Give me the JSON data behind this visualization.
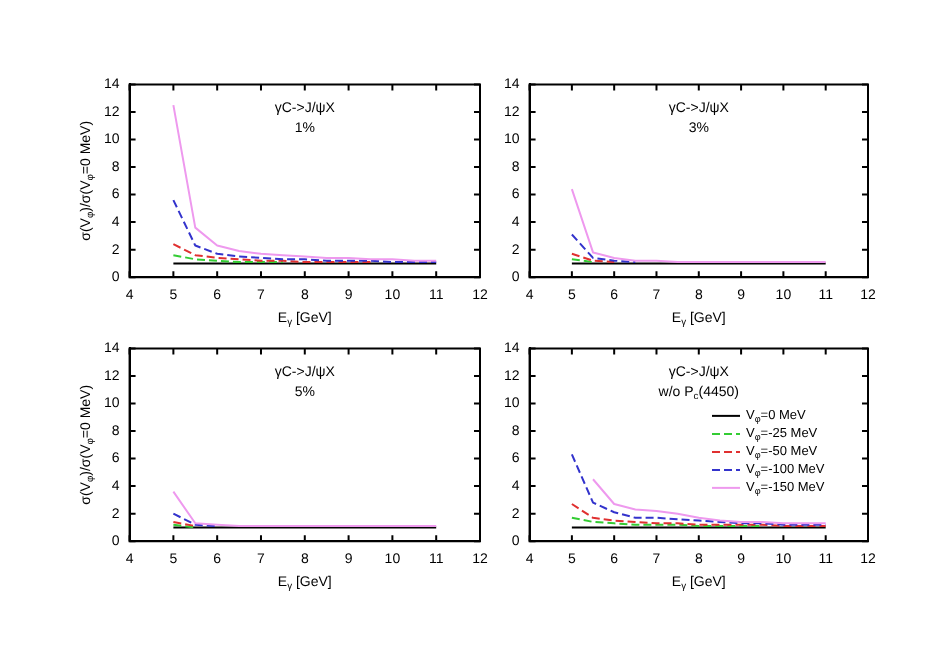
{
  "chart_data": [
    {
      "type": "line",
      "title": "γC->J/ψX",
      "subtitle": "1%",
      "xlabel": "E$_{γ}$ [GeV]",
      "ylabel": "σ(V$_{φ}$)/σ(V$_{φ}$=0 MeV)",
      "x": [
        5,
        5.5,
        6,
        6.5,
        7,
        7.5,
        8,
        8.5,
        9,
        9.5,
        10,
        10.5,
        11
      ],
      "xlim": [
        4,
        12
      ],
      "xticks": [
        4,
        5,
        6,
        7,
        8,
        9,
        10,
        11,
        12
      ],
      "ylim": [
        0,
        14
      ],
      "yticks": [
        0,
        2,
        4,
        6,
        8,
        10,
        12,
        14
      ],
      "legend": false,
      "series": [
        {
          "color": "#000000",
          "line_style": "solid",
          "values": [
            1,
            1,
            1,
            1,
            1,
            1,
            1,
            1,
            1,
            1,
            1,
            1,
            1
          ]
        },
        {
          "color": "#33cc33",
          "line_style": "dashed",
          "values": [
            1.6,
            1.3,
            1.2,
            1.1,
            1.1,
            1.1,
            null,
            null,
            null,
            null,
            null,
            null,
            null
          ]
        },
        {
          "color": "#e03030",
          "line_style": "dashed",
          "values": [
            2.4,
            1.6,
            1.4,
            1.3,
            1.2,
            1.2,
            1.1,
            1.1,
            1.1,
            1.1,
            null,
            null,
            null
          ]
        },
        {
          "color": "#3333cc",
          "line_style": "dashed",
          "values": [
            5.6,
            2.3,
            1.7,
            1.5,
            1.4,
            1.3,
            1.3,
            1.2,
            1.2,
            1.2,
            1.1,
            1.1,
            1.1
          ]
        },
        {
          "color": "#ee99ee",
          "line_style": "solid",
          "values": [
            12.5,
            3.6,
            2.3,
            1.9,
            1.7,
            1.6,
            1.5,
            1.4,
            1.4,
            1.3,
            1.3,
            1.2,
            1.2
          ]
        }
      ]
    },
    {
      "type": "line",
      "title": "γC->J/ψX",
      "subtitle": "3%",
      "xlabel": "E$_{γ}$ [GeV]",
      "x": [
        5,
        5.5,
        6,
        6.5,
        7,
        7.5,
        8,
        8.5,
        9,
        9.5,
        10,
        10.5,
        11
      ],
      "xlim": [
        4,
        12
      ],
      "xticks": [
        4,
        5,
        6,
        7,
        8,
        9,
        10,
        11,
        12
      ],
      "ylim": [
        0,
        14
      ],
      "yticks": [
        0,
        2,
        4,
        6,
        8,
        10,
        12,
        14
      ],
      "legend": false,
      "series": [
        {
          "color": "#000000",
          "line_style": "solid",
          "values": [
            1,
            1,
            1,
            1,
            1,
            1,
            1,
            1,
            1,
            1,
            1,
            1,
            1
          ]
        },
        {
          "color": "#33cc33",
          "line_style": "dashed",
          "values": [
            1.3,
            1.1,
            null,
            null,
            null,
            null,
            null,
            null,
            null,
            null,
            null,
            null,
            null
          ]
        },
        {
          "color": "#e03030",
          "line_style": "dashed",
          "values": [
            1.7,
            1.2,
            1.1,
            null,
            null,
            null,
            null,
            null,
            null,
            null,
            null,
            null,
            null
          ]
        },
        {
          "color": "#3333cc",
          "line_style": "dashed",
          "values": [
            3.1,
            1.4,
            1.2,
            1.1,
            null,
            null,
            null,
            null,
            null,
            null,
            null,
            null,
            null
          ]
        },
        {
          "color": "#ee99ee",
          "line_style": "solid",
          "values": [
            6.4,
            1.8,
            1.4,
            1.2,
            1.2,
            1.1,
            1.1,
            1.1,
            1.1,
            1.1,
            1.1,
            1.1,
            1.1
          ]
        }
      ]
    },
    {
      "type": "line",
      "title": "γC->J/ψX",
      "subtitle": "5%",
      "xlabel": "E$_{γ}$ [GeV]",
      "ylabel": "σ(V$_{φ}$)/σ(V$_{φ}$=0 MeV)",
      "x": [
        5,
        5.5,
        6,
        6.5,
        7,
        7.5,
        8,
        8.5,
        9,
        9.5,
        10,
        10.5,
        11
      ],
      "xlim": [
        4,
        12
      ],
      "xticks": [
        4,
        5,
        6,
        7,
        8,
        9,
        10,
        11,
        12
      ],
      "ylim": [
        0,
        14
      ],
      "yticks": [
        0,
        2,
        4,
        6,
        8,
        10,
        12,
        14
      ],
      "legend": false,
      "series": [
        {
          "color": "#000000",
          "line_style": "solid",
          "values": [
            1,
            1,
            1,
            1,
            1,
            1,
            1,
            1,
            1,
            1,
            1,
            1,
            1
          ]
        },
        {
          "color": "#33cc33",
          "line_style": "dashed",
          "values": [
            1.2,
            1,
            null,
            null,
            null,
            null,
            null,
            null,
            null,
            null,
            null,
            null,
            null
          ]
        },
        {
          "color": "#e03030",
          "line_style": "dashed",
          "values": [
            1.4,
            1.1,
            null,
            null,
            null,
            null,
            null,
            null,
            null,
            null,
            null,
            null,
            null
          ]
        },
        {
          "color": "#3333cc",
          "line_style": "dashed",
          "values": [
            2,
            1.2,
            1.1,
            null,
            null,
            null,
            null,
            null,
            null,
            null,
            null,
            null,
            null
          ]
        },
        {
          "color": "#ee99ee",
          "line_style": "solid",
          "values": [
            3.6,
            1.3,
            1.2,
            1.1,
            1.1,
            1.1,
            1.1,
            1.1,
            1.1,
            1.1,
            1.1,
            1.1,
            1.1
          ]
        }
      ]
    },
    {
      "type": "line",
      "title": "γC->J/ψX",
      "subtitle": "w/o P$_{c}$(4450)",
      "xlabel": "E$_{γ}$ [GeV]",
      "x": [
        5,
        5.5,
        6,
        6.5,
        7,
        7.5,
        8,
        8.5,
        9,
        9.5,
        10,
        10.5,
        11
      ],
      "xlim": [
        4,
        12
      ],
      "xticks": [
        4,
        5,
        6,
        7,
        8,
        9,
        10,
        11,
        12
      ],
      "ylim": [
        0,
        14
      ],
      "yticks": [
        0,
        2,
        4,
        6,
        8,
        10,
        12,
        14
      ],
      "legend": "right",
      "series": [
        {
          "name": "V$_{φ}$=0 MeV",
          "color": "#000000",
          "line_style": "solid",
          "values": [
            1,
            1,
            1,
            1,
            1,
            1,
            1,
            1,
            1,
            1,
            1,
            1,
            1
          ]
        },
        {
          "name": "V$_{φ}$=-25 MeV",
          "color": "#33cc33",
          "line_style": "dashed",
          "values": [
            1.7,
            1.4,
            1.3,
            1.2,
            1.2,
            1.2,
            1.1,
            1.1,
            1.1,
            1.1,
            null,
            null,
            null
          ]
        },
        {
          "name": "V$_{φ}$=-50 MeV",
          "color": "#e03030",
          "line_style": "dashed",
          "values": [
            2.7,
            1.7,
            1.5,
            1.4,
            1.3,
            1.3,
            1.2,
            1.2,
            1.2,
            1.2,
            1.1,
            1.1,
            1.1
          ]
        },
        {
          "name": "V$_{φ}$=-100 MeV",
          "color": "#3333cc",
          "line_style": "dashed",
          "values": [
            6.3,
            2.8,
            2.1,
            1.7,
            1.7,
            1.6,
            1.5,
            1.4,
            1.3,
            1.3,
            1.2,
            1.2,
            1.2
          ]
        },
        {
          "name": "V$_{φ}$=-150 MeV",
          "color": "#ee99ee",
          "line_style": "solid",
          "values": [
            null,
            4.5,
            2.7,
            2.3,
            2.2,
            2,
            1.7,
            1.5,
            1.4,
            1.4,
            1.3,
            1.3,
            1.3
          ]
        }
      ]
    }
  ]
}
